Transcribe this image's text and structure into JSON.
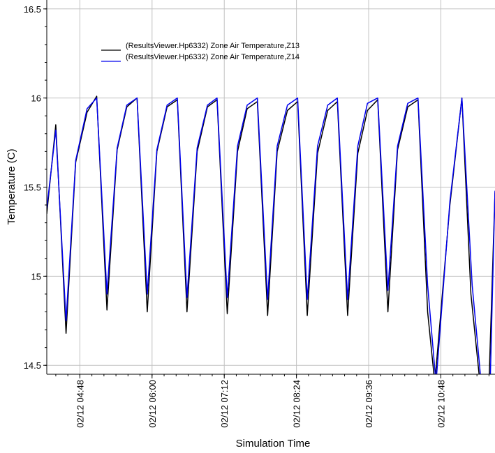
{
  "chart_data": {
    "type": "line",
    "title": "",
    "xlabel": "Simulation Time",
    "ylabel": "Temperature (C)",
    "ylim": [
      14.45,
      16.55
    ],
    "xlim": [
      4.25,
      11.7
    ],
    "grid": true,
    "legend_position": "top-left",
    "x_ticks": [
      {
        "x": 4.8,
        "label": "02/12 04:48"
      },
      {
        "x": 6.0,
        "label": "02/12 06:00"
      },
      {
        "x": 7.2,
        "label": "02/12 07:12"
      },
      {
        "x": 8.4,
        "label": "02/12 08:24"
      },
      {
        "x": 9.6,
        "label": "02/12 09:36"
      },
      {
        "x": 10.8,
        "label": "02/12 10:48"
      }
    ],
    "y_ticks": [
      {
        "y": 14.5,
        "label": "14.5"
      },
      {
        "y": 15,
        "label": "15"
      },
      {
        "y": 15.5,
        "label": "15.5"
      },
      {
        "y": 16,
        "label": "16"
      },
      {
        "y": 16.5,
        "label": "16.5"
      }
    ],
    "series": [
      {
        "name": "(ResultsViewer.Hp6332) Zone Air Temperature,Z13",
        "color": "#000000",
        "x": [
          4.25,
          4.4,
          4.57,
          4.73,
          4.92,
          5.08,
          5.25,
          5.42,
          5.58,
          5.75,
          5.92,
          6.08,
          6.25,
          6.42,
          6.58,
          6.75,
          6.92,
          7.08,
          7.25,
          7.42,
          7.58,
          7.75,
          7.92,
          8.08,
          8.25,
          8.42,
          8.58,
          8.75,
          8.92,
          9.08,
          9.25,
          9.42,
          9.58,
          9.75,
          9.92,
          10.08,
          10.25,
          10.42,
          10.58,
          10.7,
          10.95,
          11.15,
          11.3,
          11.45,
          11.6,
          11.7
        ],
        "y": [
          15.35,
          15.85,
          14.68,
          15.64,
          15.92,
          16.01,
          14.81,
          15.71,
          15.95,
          16.0,
          14.8,
          15.7,
          15.95,
          15.99,
          14.8,
          15.7,
          15.95,
          15.99,
          14.79,
          15.7,
          15.94,
          15.98,
          14.78,
          15.7,
          15.93,
          15.98,
          14.78,
          15.69,
          15.93,
          15.98,
          14.78,
          15.69,
          15.93,
          15.99,
          14.8,
          15.71,
          15.95,
          15.99,
          14.8,
          14.4,
          15.4,
          16.0,
          14.9,
          14.4,
          14.4,
          15.47
        ]
      },
      {
        "name": "(ResultsViewer.Hp6332) Zone Air Temperature,Z14",
        "color": "#0000ee",
        "x": [
          4.25,
          4.4,
          4.57,
          4.73,
          4.92,
          5.08,
          5.25,
          5.42,
          5.58,
          5.75,
          5.92,
          6.08,
          6.25,
          6.42,
          6.58,
          6.75,
          6.92,
          7.08,
          7.25,
          7.42,
          7.58,
          7.75,
          7.92,
          8.08,
          8.25,
          8.42,
          8.58,
          8.75,
          8.92,
          9.08,
          9.25,
          9.42,
          9.58,
          9.75,
          9.92,
          10.08,
          10.25,
          10.42,
          10.58,
          10.72,
          10.95,
          11.15,
          11.32,
          11.47,
          11.62,
          11.7
        ],
        "y": [
          15.38,
          15.82,
          14.75,
          15.65,
          15.94,
          16.0,
          14.9,
          15.72,
          15.96,
          16.0,
          14.9,
          15.71,
          15.96,
          16.0,
          14.88,
          15.72,
          15.96,
          16.0,
          14.88,
          15.73,
          15.96,
          16.0,
          14.87,
          15.73,
          15.96,
          16.0,
          14.87,
          15.73,
          15.96,
          16.0,
          14.87,
          15.73,
          15.97,
          16.0,
          14.92,
          15.73,
          15.97,
          16.0,
          14.95,
          14.4,
          15.42,
          16.0,
          14.95,
          14.4,
          14.4,
          15.48
        ]
      }
    ]
  }
}
